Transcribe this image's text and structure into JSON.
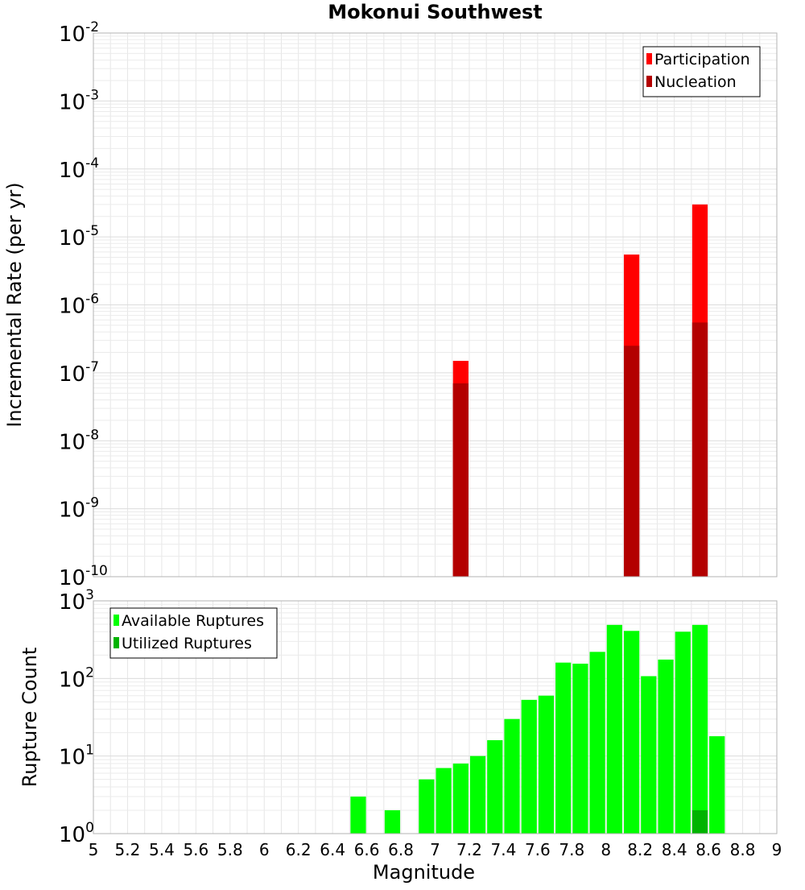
{
  "chart_data": [
    {
      "type": "bar",
      "title": "Mokonui Southwest",
      "xlabel": "",
      "ylabel": "Incremental Rate (per yr)",
      "y_scale": "log",
      "ylim_exponents": [
        -10,
        -2
      ],
      "xlim": [
        5,
        9
      ],
      "bar_width": 0.1,
      "legend_position": "top-right",
      "grid": true,
      "series": [
        {
          "name": "Participation",
          "color": "#ff0000",
          "x": [
            7.15,
            8.15,
            8.55
          ],
          "values": [
            1.5e-07,
            5.5e-06,
            3e-05
          ]
        },
        {
          "name": "Nucleation",
          "color": "#b30000",
          "x": [
            7.15,
            8.15,
            8.55
          ],
          "values": [
            7e-08,
            2.5e-07,
            5.5e-07
          ]
        }
      ]
    },
    {
      "type": "bar",
      "title": "",
      "xlabel": "Magnitude",
      "ylabel": "Rupture Count",
      "y_scale": "log",
      "ylim_exponents": [
        0,
        3
      ],
      "xlim": [
        5,
        9
      ],
      "bar_width": 0.1,
      "legend_position": "top-left",
      "grid": true,
      "x_ticks": [
        "5",
        "5.2",
        "5.4",
        "5.6",
        "5.8",
        "6",
        "6.2",
        "6.4",
        "6.6",
        "6.8",
        "7",
        "7.2",
        "7.4",
        "7.6",
        "7.8",
        "8",
        "8.2",
        "8.4",
        "8.6",
        "8.8",
        "9"
      ],
      "series": [
        {
          "name": "Available Ruptures",
          "color": "#00ff00",
          "x": [
            6.55,
            6.75,
            6.85,
            6.95,
            7.05,
            7.15,
            7.25,
            7.35,
            7.45,
            7.55,
            7.65,
            7.75,
            7.85,
            7.95,
            8.05,
            8.15,
            8.25,
            8.35,
            8.45,
            8.55,
            8.65
          ],
          "values": [
            3,
            2,
            1,
            5,
            7,
            8,
            10,
            16,
            30,
            53,
            60,
            160,
            155,
            220,
            490,
            410,
            107,
            175,
            400,
            490,
            18
          ]
        },
        {
          "name": "Utilized Ruptures",
          "color": "#00b300",
          "x": [
            7.15,
            8.15,
            8.55
          ],
          "values": [
            1,
            1,
            2
          ]
        }
      ]
    }
  ]
}
